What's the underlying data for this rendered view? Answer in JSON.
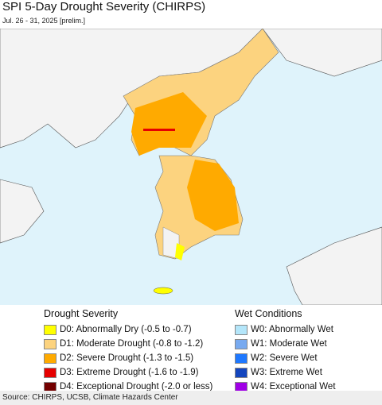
{
  "header": {
    "title": "SPI 5-Day Drought Severity (CHIRPS)",
    "subtitle": "Jul. 26 - 31, 2025 [prelim.]"
  },
  "legend": {
    "drought": {
      "title": "Drought Severity",
      "items": [
        {
          "label": "D0: Abnormally Dry (-0.5 to -0.7)",
          "color": "#ffff00"
        },
        {
          "label": "D1: Moderate Drought (-0.8 to -1.2)",
          "color": "#fcd37f"
        },
        {
          "label": "D2: Severe Drought (-1.3 to -1.5)",
          "color": "#ffaa00"
        },
        {
          "label": "D3: Extreme Drought (-1.6 to -1.9)",
          "color": "#e60000"
        },
        {
          "label": "D4: Exceptional Drought (-2.0 or less)",
          "color": "#730000"
        }
      ]
    },
    "wet": {
      "title": "Wet Conditions",
      "items": [
        {
          "label": "W0: Abnormally Wet",
          "color": "#b4e6fa"
        },
        {
          "label": "W1: Moderate Wet",
          "color": "#78aaf0"
        },
        {
          "label": "W2: Severe Wet",
          "color": "#1e78ff"
        },
        {
          "label": "W3: Extreme Wet",
          "color": "#1446be"
        },
        {
          "label": "W4: Exceptional Wet",
          "color": "#a000e6"
        }
      ]
    }
  },
  "footer": {
    "source": "Source: CHIRPS, UCSB, Climate Hazards Center"
  }
}
